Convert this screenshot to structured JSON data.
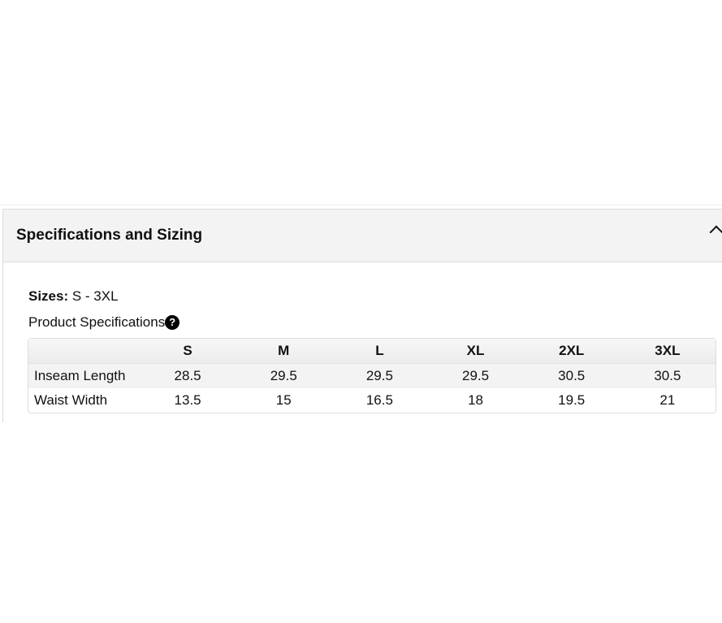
{
  "section": {
    "title": "Specifications and Sizing",
    "expanded": true
  },
  "sizes": {
    "label": "Sizes:",
    "value": " S - 3XL"
  },
  "spec_title": "Product Specifications",
  "help_icon": "?",
  "table": {
    "headers": [
      "",
      "S",
      "M",
      "L",
      "XL",
      "2XL",
      "3XL"
    ],
    "rows": [
      {
        "label": "Inseam Length",
        "values": [
          "28.5",
          "29.5",
          "29.5",
          "29.5",
          "30.5",
          "30.5"
        ]
      },
      {
        "label": "Waist Width",
        "values": [
          "13.5",
          "15",
          "16.5",
          "18",
          "19.5",
          "21"
        ]
      }
    ]
  }
}
